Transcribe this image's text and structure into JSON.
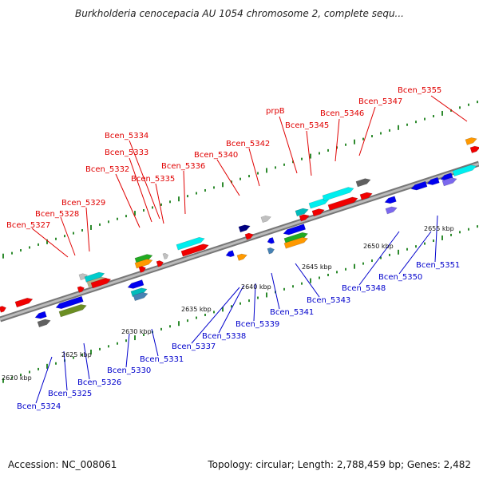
{
  "title": "Burkholderia cenocepacia AU 1054 chromosome 2, complete sequ...",
  "footer": {
    "accession": "Accession: NC_008061",
    "summary": "Topology: circular; Length: 2,788,459 bp; Genes: 2,482"
  },
  "scale_labels": [
    "2620 kbp",
    "2625 kbp",
    "2630 kbp",
    "2635 kbp",
    "2640 kbp",
    "2645 kbp",
    "2650 kbp",
    "2655 kbp"
  ],
  "forward_gene_labels": [
    "Bcen_5327",
    "Bcen_5328",
    "Bcen_5329",
    "Bcen_5332",
    "Bcen_5333",
    "Bcen_5334",
    "Bcen_5335",
    "Bcen_5336",
    "Bcen_5340",
    "Bcen_5342",
    "prpB",
    "Bcen_5345",
    "Bcen_5346",
    "Bcen_5347",
    "Bcen_5355"
  ],
  "reverse_gene_labels": [
    "Bcen_5324",
    "Bcen_5325",
    "Bcen_5326",
    "Bcen_5330",
    "Bcen_5331",
    "Bcen_5337",
    "Bcen_5338",
    "Bcen_5339",
    "Bcen_5341",
    "Bcen_5343",
    "Bcen_5348",
    "Bcen_5350",
    "Bcen_5351"
  ],
  "colors": {
    "forward_label": "#e00000",
    "reverse_label": "#0000cc",
    "backbone": "#8a8a8a",
    "tick_green": "#2e8b2e"
  }
}
